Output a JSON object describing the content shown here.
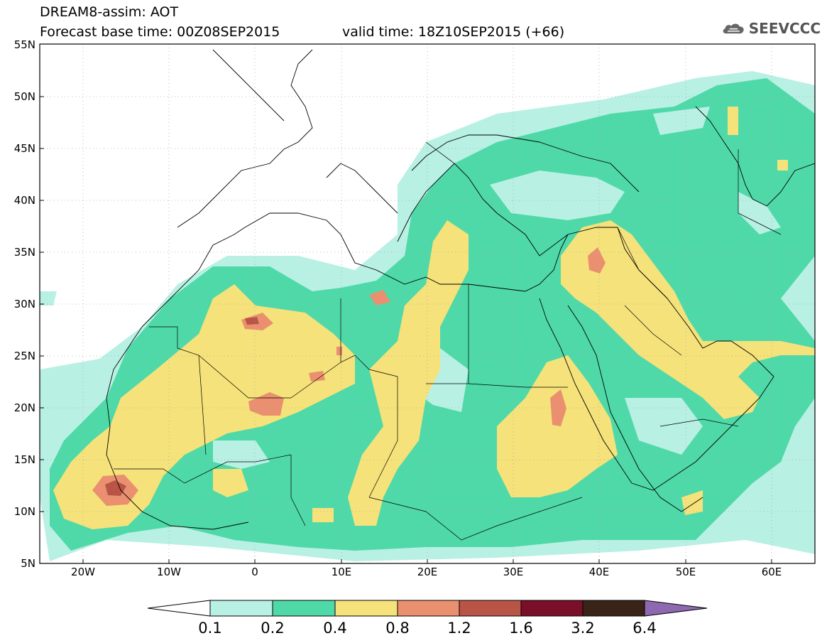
{
  "header": {
    "title_line1": "DREAM8-assim: AOT",
    "title_line2": "Forecast base time: 00Z08SEP2015",
    "valid_time": "valid time: 18Z10SEP2015 (+66)",
    "logo_text": "SEEVCCC",
    "logo_icon": "cloud-icon"
  },
  "map": {
    "lon_range": [
      -25,
      65
    ],
    "lat_range": [
      5,
      55
    ],
    "grid": "dotted",
    "lat_ticks": [
      "55N",
      "50N",
      "45N",
      "40N",
      "35N",
      "30N",
      "25N",
      "20N",
      "15N",
      "10N",
      "5N"
    ],
    "lon_ticks": [
      "20W",
      "10W",
      "0",
      "10E",
      "20E",
      "30E",
      "40E",
      "50E",
      "60E"
    ],
    "field": "AOT"
  },
  "colorbar": {
    "labels": [
      "0.1",
      "0.2",
      "0.4",
      "0.8",
      "1.2",
      "1.6",
      "3.2",
      "6.4"
    ],
    "colors": [
      "#b8f0e4",
      "#4fd9a8",
      "#f5e27a",
      "#ea9070",
      "#b85546",
      "#7a0f2a",
      "#3a2418",
      "#8e69b0"
    ],
    "under_color": "#ffffff"
  }
}
